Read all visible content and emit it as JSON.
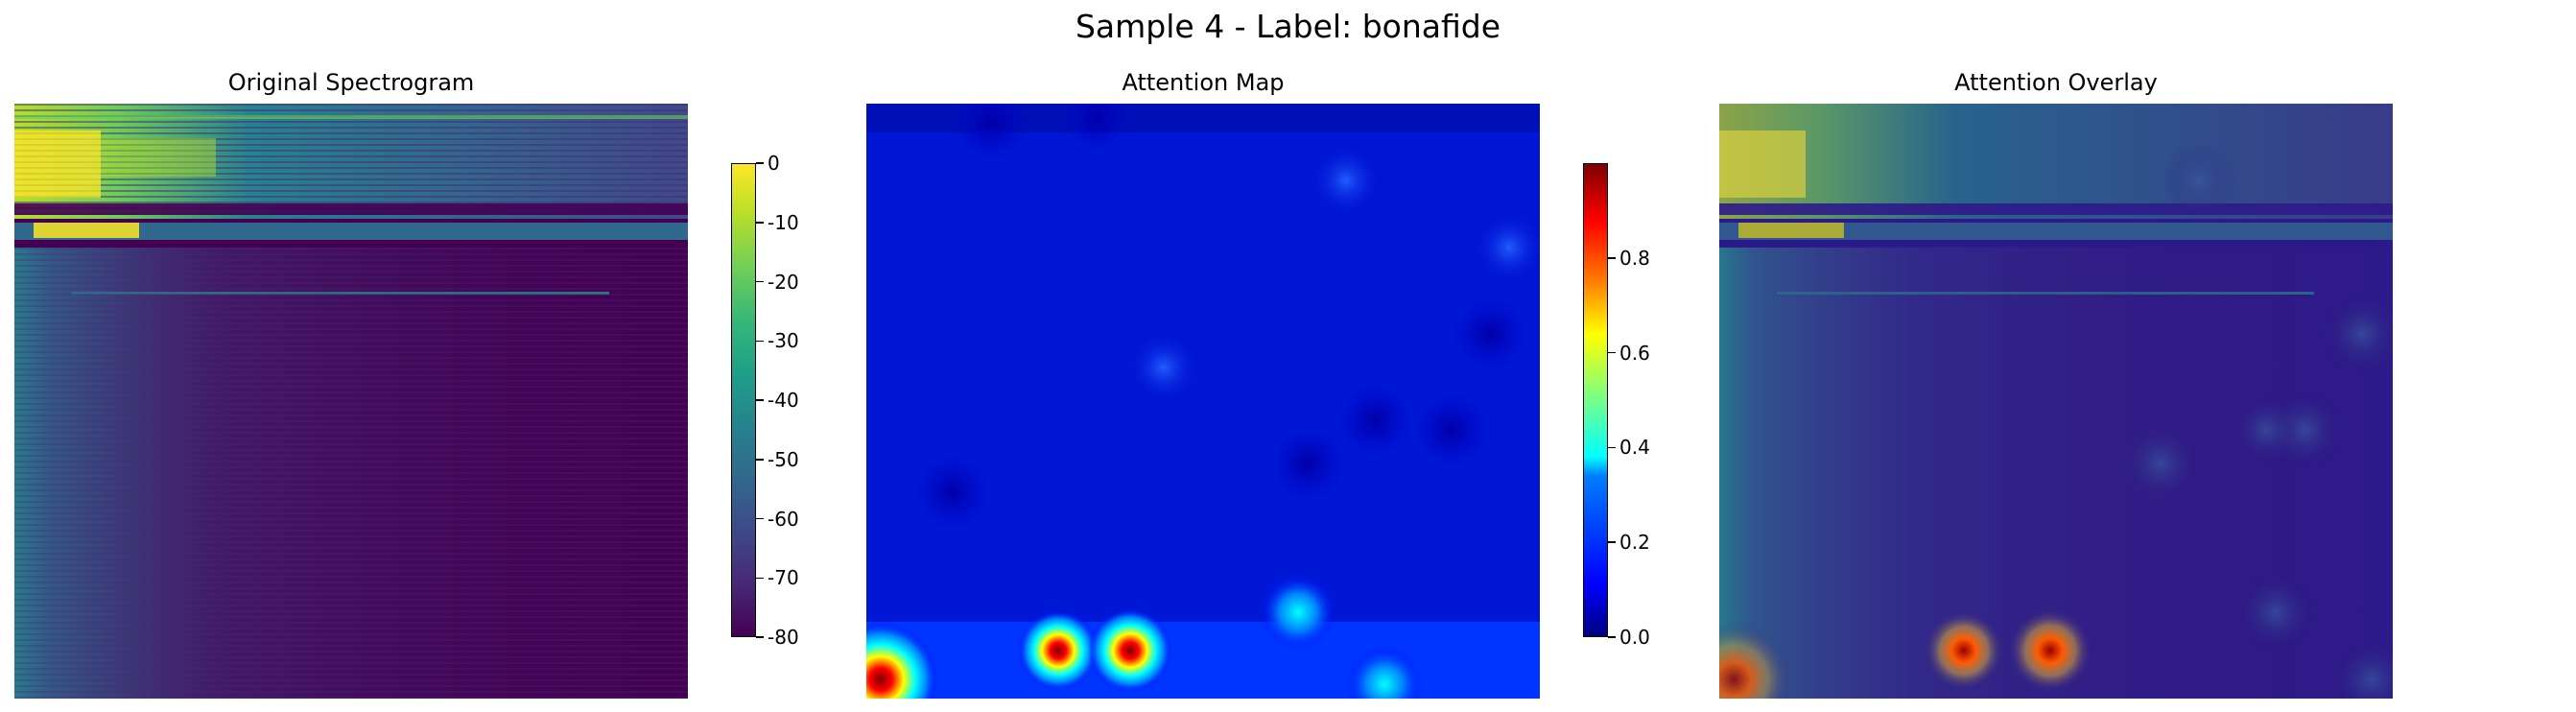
{
  "figure": {
    "suptitle": "Sample 4 - Label: bonafide"
  },
  "chart_data": [
    {
      "type": "heatmap",
      "title": "Original Spectrogram",
      "colormap": "viridis",
      "colorbar": {
        "ticks": [
          "0",
          "-10",
          "-20",
          "-30",
          "-40",
          "-50",
          "-60",
          "-70",
          "-80"
        ],
        "range": [
          -80,
          0
        ]
      },
      "axes": "off"
    },
    {
      "type": "heatmap",
      "title": "Attention Map",
      "colormap": "jet",
      "colorbar": {
        "ticks": [
          "0.0",
          "0.2",
          "0.4",
          "0.6",
          "0.8"
        ],
        "range": [
          0,
          1
        ]
      },
      "axes": "off"
    },
    {
      "type": "heatmap",
      "title": "Attention Overlay",
      "colormap": "jet overlay on viridis",
      "axes": "off"
    }
  ]
}
